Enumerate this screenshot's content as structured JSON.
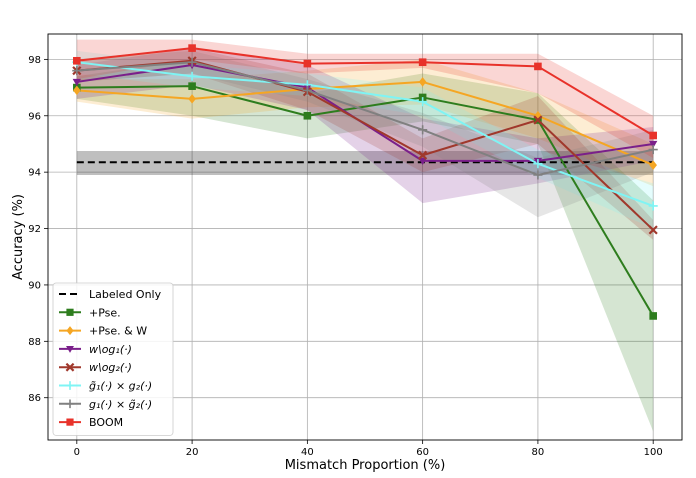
{
  "chart_data": {
    "type": "line",
    "xlabel": "Mismatch Proportion (%)",
    "ylabel": "Accuracy (%)",
    "xlim": [
      -5,
      105
    ],
    "ylim": [
      84.5,
      98.9
    ],
    "xticks": [
      0,
      20,
      40,
      60,
      80,
      100
    ],
    "yticks": [
      86,
      88,
      90,
      92,
      94,
      96,
      98
    ],
    "grid": true,
    "legend_position": "lower-left",
    "x": [
      0,
      20,
      40,
      60,
      80,
      100
    ],
    "series": [
      {
        "name": "Labeled Only",
        "color": "#000000",
        "marker": "none",
        "dashed": true,
        "values": [
          94.35,
          94.35,
          94.35,
          94.35,
          94.35,
          94.35
        ],
        "lower": [
          93.9,
          93.9,
          93.9,
          93.9,
          93.9,
          93.9
        ],
        "upper": [
          94.75,
          94.75,
          94.75,
          94.75,
          94.75,
          94.75
        ]
      },
      {
        "name": "+Pse.",
        "color": "#2e7d1e",
        "marker": "square",
        "values": [
          97.0,
          97.05,
          96.0,
          96.65,
          95.85,
          88.9
        ],
        "lower": [
          96.6,
          96.0,
          95.2,
          95.8,
          95.0,
          84.8
        ],
        "upper": [
          97.4,
          98.0,
          96.8,
          97.5,
          96.8,
          93.0
        ]
      },
      {
        "name": "+Pse. & W",
        "color": "#f5a623",
        "marker": "diamond",
        "values": [
          96.9,
          96.6,
          96.95,
          97.2,
          96.0,
          94.25
        ],
        "lower": [
          96.5,
          95.9,
          96.3,
          96.4,
          95.2,
          93.5
        ],
        "upper": [
          97.3,
          97.3,
          97.6,
          98.0,
          96.8,
          95.0
        ]
      },
      {
        "name": "w\\og₁(·)",
        "color": "#7a1f8a",
        "marker": "triangle-down",
        "values": [
          97.2,
          97.8,
          97.0,
          94.4,
          94.4,
          95.0
        ],
        "lower": [
          96.6,
          97.1,
          96.2,
          92.9,
          93.6,
          94.4
        ],
        "upper": [
          97.8,
          98.4,
          97.8,
          95.9,
          95.2,
          95.6
        ]
      },
      {
        "name": "w\\og₂(·)",
        "color": "#a0382c",
        "marker": "x",
        "values": [
          97.6,
          97.95,
          96.85,
          94.6,
          95.85,
          91.95
        ],
        "lower": [
          97.2,
          97.5,
          96.2,
          94.0,
          95.0,
          91.6
        ],
        "upper": [
          98.0,
          98.4,
          97.5,
          95.2,
          96.7,
          92.3
        ]
      },
      {
        "name": "g̃₁(·) × g₂(·)",
        "color": "#7ff4f4",
        "marker": "plus",
        "values": [
          97.9,
          97.4,
          97.1,
          96.5,
          94.3,
          92.8
        ],
        "lower": [
          97.5,
          97.0,
          96.7,
          96.0,
          93.8,
          92.0
        ],
        "upper": [
          98.3,
          97.8,
          97.5,
          97.0,
          94.8,
          93.6
        ]
      },
      {
        "name": "g₁(·) × g̃₂(·)",
        "color": "#808080",
        "marker": "plus",
        "values": [
          97.6,
          97.9,
          96.9,
          95.5,
          93.9,
          94.8
        ],
        "lower": [
          97.2,
          97.5,
          96.5,
          94.9,
          92.4,
          94.0
        ],
        "upper": [
          98.0,
          98.3,
          97.3,
          96.1,
          94.5,
          95.5
        ]
      },
      {
        "name": "BOOM",
        "color": "#e8322a",
        "marker": "square",
        "values": [
          97.95,
          98.4,
          97.85,
          97.9,
          97.75,
          95.3
        ],
        "lower": [
          97.3,
          98.0,
          97.5,
          97.7,
          96.8,
          94.5
        ],
        "upper": [
          98.7,
          98.7,
          98.2,
          98.2,
          98.2,
          96.0
        ]
      }
    ]
  }
}
